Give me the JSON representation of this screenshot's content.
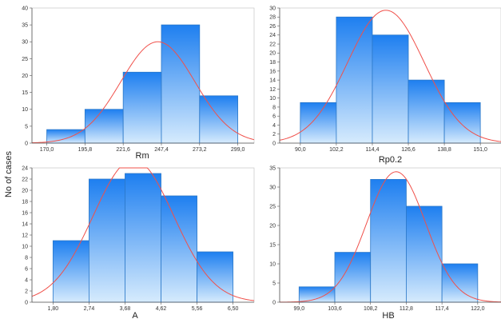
{
  "figure": {
    "ylabel": "No of cases"
  },
  "colors": {
    "bar_top": "#1e7ff0",
    "bar_bottom": "#d6ebfd",
    "bar_stroke": "#2b78c8",
    "curve": "#f0504a",
    "axis": "#555555",
    "grid_bg": "#ffffff"
  },
  "chart_data": [
    {
      "type": "bar",
      "variant": "histogram",
      "xlabel": "Rm",
      "ylabel": "No of cases",
      "bin_edges": [
        170.0,
        195.8,
        221.6,
        247.4,
        273.2,
        299.0
      ],
      "bin_edge_labels": [
        "170,0",
        "195,8",
        "221,6",
        "247,4",
        "273,2",
        "299,0"
      ],
      "values": [
        4,
        10,
        21,
        35,
        14
      ],
      "ylim": [
        0,
        40
      ],
      "yticks": [
        0,
        5,
        10,
        15,
        20,
        25,
        30,
        35,
        40
      ],
      "xlim": [
        160.0,
        310.0
      ],
      "normal_curve": {
        "mean": 245.0,
        "sd": 25.0,
        "peak": 30
      }
    },
    {
      "type": "bar",
      "variant": "histogram",
      "xlabel": "Rp0.2",
      "ylabel": "No of cases",
      "bin_edges": [
        90.0,
        102.2,
        114.4,
        126.6,
        138.8,
        151.0
      ],
      "bin_edge_labels": [
        "90,0",
        "102,2",
        "114,4",
        "126,6",
        "138,8",
        "151,0"
      ],
      "values": [
        9,
        28,
        24,
        14,
        9
      ],
      "ylim": [
        0,
        30
      ],
      "yticks": [
        0,
        2,
        4,
        6,
        8,
        10,
        12,
        14,
        16,
        18,
        20,
        22,
        24,
        26,
        28,
        30
      ],
      "xlim": [
        83.0,
        158.0
      ],
      "normal_curve": {
        "mean": 119.0,
        "sd": 13.0,
        "peak": 29.5
      }
    },
    {
      "type": "bar",
      "variant": "histogram",
      "xlabel": "A",
      "ylabel": "No of cases",
      "bin_edges": [
        1.8,
        2.74,
        3.68,
        4.62,
        5.56,
        6.5
      ],
      "bin_edge_labels": [
        "1,80",
        "2,74",
        "3,68",
        "4,62",
        "5,56",
        "6,50"
      ],
      "values": [
        11,
        22,
        23,
        19,
        9
      ],
      "ylim": [
        0,
        24
      ],
      "yticks": [
        0,
        2,
        4,
        6,
        8,
        10,
        12,
        14,
        16,
        18,
        20,
        22,
        24
      ],
      "xlim": [
        1.25,
        7.05
      ],
      "normal_curve": {
        "mean": 3.9,
        "sd": 1.05,
        "peak": 25.5
      }
    },
    {
      "type": "bar",
      "variant": "histogram",
      "xlabel": "HB",
      "ylabel": "No of cases",
      "bin_edges": [
        99.0,
        103.6,
        108.2,
        112.8,
        117.4,
        122.0
      ],
      "bin_edge_labels": [
        "99,0",
        "103,6",
        "108,2",
        "112,8",
        "117,4",
        "122,0"
      ],
      "values": [
        4,
        13,
        32,
        25,
        10
      ],
      "ylim": [
        0,
        35
      ],
      "yticks": [
        0,
        5,
        10,
        15,
        20,
        25,
        30,
        35
      ],
      "xlim": [
        96.5,
        125.0
      ],
      "normal_curve": {
        "mean": 111.5,
        "sd": 3.8,
        "peak": 34
      }
    }
  ]
}
